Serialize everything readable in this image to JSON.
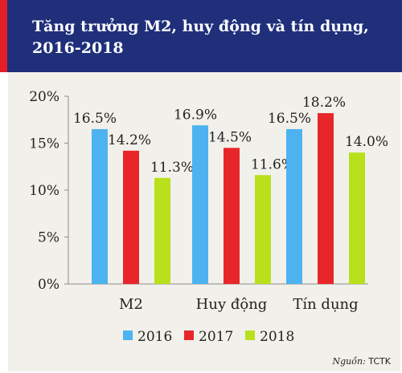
{
  "header": {
    "title_line1": "Tăng trưởng M2, huy động và tín dụng,",
    "title_line2": "2016-2018"
  },
  "colors": {
    "header_bg": "#1f2f7a",
    "header_accent": "#e31e24",
    "panel_bg": "#f2f0ea"
  },
  "chart_data": {
    "type": "bar",
    "title": "Tăng trưởng M2, huy động và tín dụng, 2016-2018",
    "categories": [
      "M2",
      "Huy động",
      "Tín dụng"
    ],
    "series": [
      {
        "name": "2016",
        "color": "#4db3f0",
        "values": [
          16.5,
          16.9,
          16.5
        ],
        "labels": [
          "16.5%",
          "16.9%",
          "16.5%"
        ]
      },
      {
        "name": "2017",
        "color": "#e8262a",
        "values": [
          14.2,
          14.5,
          18.2
        ],
        "labels": [
          "14.2%",
          "14.5%",
          "18.2%"
        ]
      },
      {
        "name": "2018",
        "color": "#b8e01c",
        "values": [
          11.3,
          11.6,
          14.0
        ],
        "labels": [
          "11.3%",
          "11.6%",
          "14.0%"
        ]
      }
    ],
    "ylim": [
      0,
      20
    ],
    "yticks": [
      "0%",
      "5%",
      "10%",
      "15%",
      "20%"
    ],
    "legend_position": "bottom",
    "grid": false
  },
  "source": {
    "label": "Nguồn:",
    "value": "TCTK"
  }
}
